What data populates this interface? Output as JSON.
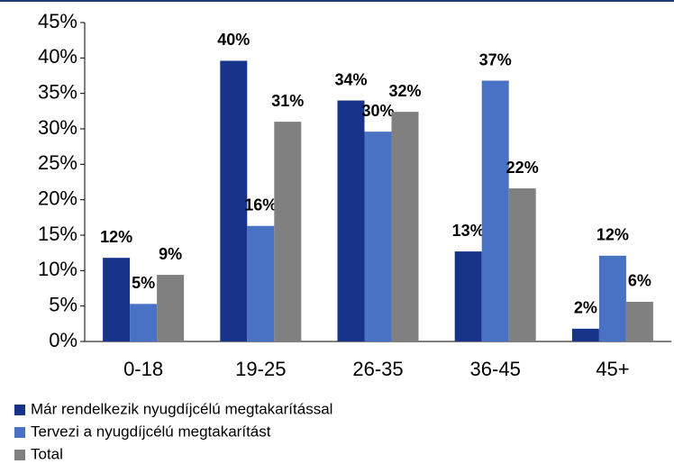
{
  "chart_data": {
    "type": "bar",
    "categories": [
      "0-18",
      "19-25",
      "26-35",
      "36-45",
      "45+"
    ],
    "series": [
      {
        "name": "Már rendelkezik nyugdíjcélú megtakarítással",
        "color": "#17338a",
        "values": [
          11.8,
          39.6,
          34.0,
          12.7,
          1.8
        ],
        "value_labels": [
          "12%",
          "40%",
          "34%",
          "13%",
          "2%"
        ]
      },
      {
        "name": "Tervezi a nyugdíjcélú megtakarítást",
        "color": "#4a72c4",
        "values": [
          5.3,
          16.3,
          29.6,
          36.8,
          12.1
        ],
        "value_labels": [
          "5%",
          "16%",
          "30%",
          "37%",
          "12%"
        ]
      },
      {
        "name": "Total",
        "color": "#808080",
        "values": [
          9.4,
          31.0,
          32.4,
          21.6,
          5.6
        ],
        "value_labels": [
          "9%",
          "31%",
          "32%",
          "22%",
          "6%"
        ]
      }
    ],
    "ylim": [
      0,
      45
    ],
    "yticks": [
      {
        "value": 0,
        "label": "0%"
      },
      {
        "value": 5,
        "label": "5%"
      },
      {
        "value": 10,
        "label": "10%"
      },
      {
        "value": 15,
        "label": "15%"
      },
      {
        "value": 20,
        "label": "20%"
      },
      {
        "value": 25,
        "label": "25%"
      },
      {
        "value": 30,
        "label": "30%"
      },
      {
        "value": 35,
        "label": "35%"
      },
      {
        "value": 40,
        "label": "40%"
      },
      {
        "value": 45,
        "label": "45%"
      }
    ],
    "legend": "bottom-left"
  }
}
